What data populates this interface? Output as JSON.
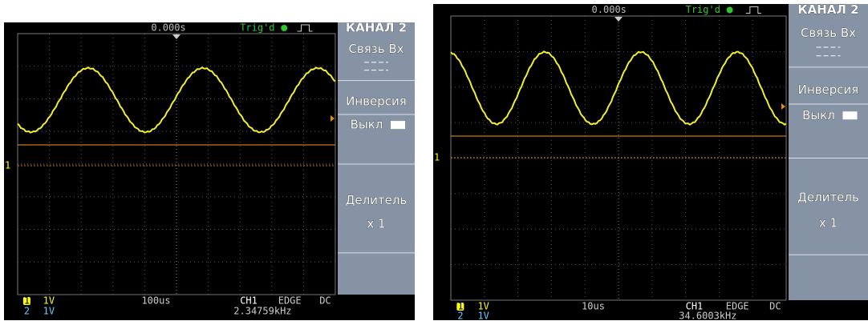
{
  "screens": [
    {
      "header": {
        "time_offset": "0.000s",
        "trigger_status": "Trig'd"
      },
      "menu": {
        "title": "КАНАЛ 2",
        "coupling_label": "Связь Вх",
        "invert_label": "Инверсия",
        "invert_value": "Выкл",
        "probe_label": "Делитель",
        "probe_value": "x 1"
      },
      "marker": "1",
      "footer": {
        "ch1_icon": "1",
        "ch1_scale": "1V",
        "ch2_icon": "2",
        "ch2_scale": "1V",
        "timebase": "100us",
        "trigger_source": "CH1",
        "trigger_type": "EDGE",
        "trigger_coupling": "DC",
        "frequency": "2.34759kHz"
      }
    },
    {
      "header": {
        "time_offset": "0.000s",
        "trigger_status": "Trig'd"
      },
      "menu": {
        "title": "КАНАЛ 2",
        "coupling_label": "Связь Вх",
        "invert_label": "Инверсия",
        "invert_value": "Выкл",
        "probe_label": "Делитель",
        "probe_value": "x 1"
      },
      "marker": "1",
      "footer": {
        "ch1_icon": "1",
        "ch1_scale": "1V",
        "ch2_icon": "2",
        "ch2_scale": "1V",
        "timebase": "10us",
        "trigger_source": "CH1",
        "trigger_type": "EDGE",
        "trigger_coupling": "DC",
        "frequency": "34.6003kHz"
      }
    }
  ]
}
